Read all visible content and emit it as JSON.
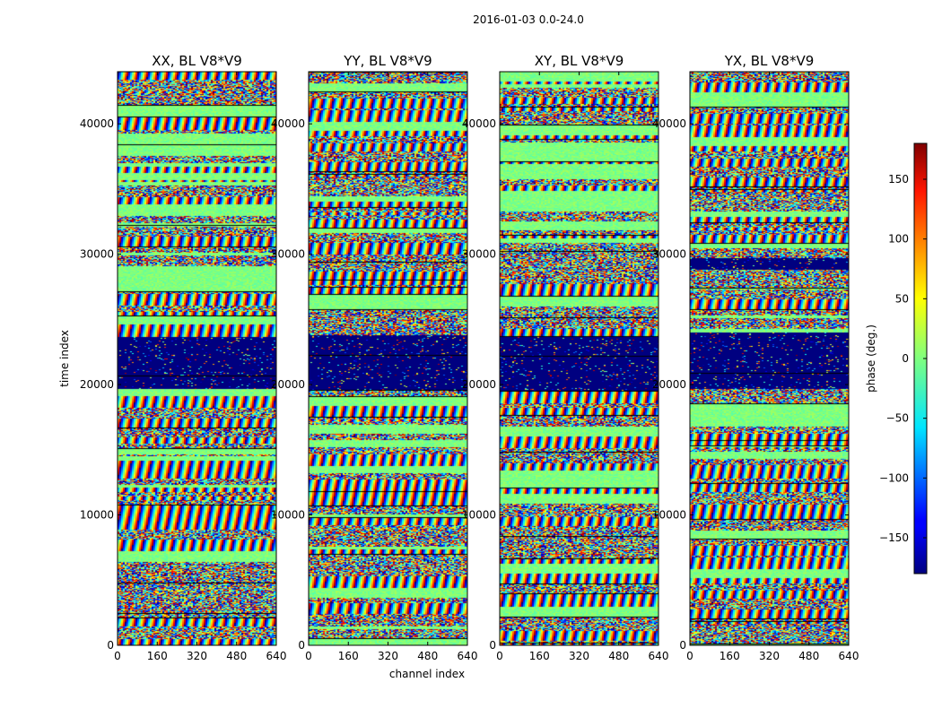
{
  "chart_data": {
    "type": "heatmap",
    "suptitle": "2016-01-03 0.0-24.0",
    "panels": [
      {
        "title": "XX, BL V8*V9"
      },
      {
        "title": "YY, BL V8*V9"
      },
      {
        "title": "XY, BL V8*V9"
      },
      {
        "title": "YX, BL V8*V9"
      }
    ],
    "xlabel": "channel index",
    "ylabel": "time index",
    "xlim": [
      0,
      640
    ],
    "ylim": [
      0,
      44000
    ],
    "x_ticks": [
      "0",
      "160",
      "320",
      "480",
      "640"
    ],
    "y_ticks": [
      "0",
      "10000",
      "20000",
      "30000",
      "40000"
    ],
    "x_tick_values": [
      0,
      160,
      320,
      480,
      640
    ],
    "y_tick_values": [
      0,
      10000,
      20000,
      30000,
      40000
    ],
    "colorbar": {
      "label": "phase (deg.)",
      "range": [
        -180,
        180
      ],
      "ticks": [
        "150",
        "100",
        "50",
        "0",
        "−50",
        "−100",
        "−150"
      ],
      "tick_values": [
        150,
        100,
        50,
        0,
        -50,
        -100,
        -150
      ],
      "colormap": "jet"
    },
    "notable_bands": [
      {
        "y_start": 20000,
        "y_end": 24000,
        "phase": -180,
        "description": "dark blue saturated band"
      },
      {
        "y_start": 29500,
        "y_end": 29800,
        "phase": -180,
        "description": "dark separator line"
      }
    ]
  }
}
